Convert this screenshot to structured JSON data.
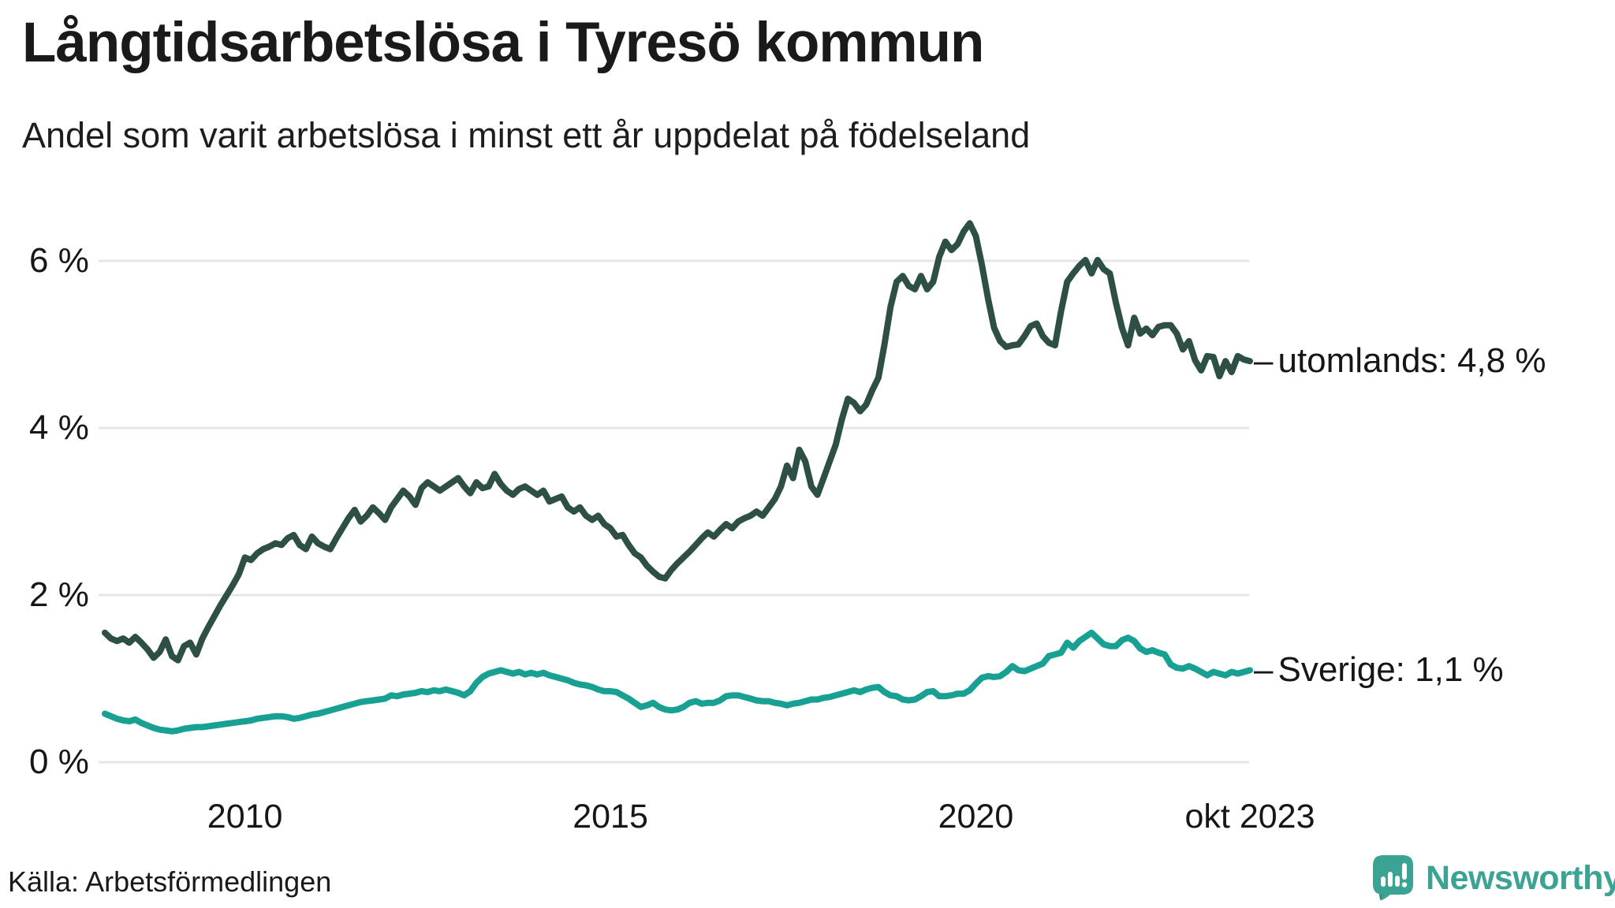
{
  "header": {
    "title": "Långtidsarbetslösa i Tyresö kommun",
    "subtitle": "Andel som varit arbetslösa i minst ett år uppdelat på födelseland"
  },
  "footer": {
    "source": "Källa: Arbetsförmedlingen",
    "logo_text": "Newsworthy"
  },
  "colors": {
    "utomlands_line": "#2d4f45",
    "sverige_line": "#18a192",
    "gridline": "#e6e6e8",
    "text": "#1a1a1a",
    "logo_teal": "#3aa394"
  },
  "chart_data": {
    "type": "line",
    "unit": "%",
    "ylim": [
      0,
      6.6
    ],
    "grid": "horizontal",
    "legend_position": "right-end-labels",
    "label_dash": "–",
    "y_ticks": [
      {
        "label": "6 %",
        "value": 6
      },
      {
        "label": "4 %",
        "value": 4
      },
      {
        "label": "2 %",
        "value": 2
      },
      {
        "label": "0 %",
        "value": 0
      }
    ],
    "x_ticks": [
      {
        "label": "2010",
        "month_index": 23
      },
      {
        "label": "2015",
        "month_index": 83
      },
      {
        "label": "2020",
        "month_index": 143
      },
      {
        "label": "okt 2023",
        "month_index": 188
      }
    ],
    "series": [
      {
        "name": "utomlands",
        "end_label": "utomlands: 4,8 %",
        "end_value": "4,8 %",
        "color": "#2d4f45",
        "values": [
          1.55,
          1.48,
          1.45,
          1.48,
          1.43,
          1.5,
          1.43,
          1.35,
          1.25,
          1.32,
          1.47,
          1.27,
          1.22,
          1.39,
          1.43,
          1.29,
          1.48,
          1.62,
          1.75,
          1.88,
          2.0,
          2.12,
          2.25,
          2.45,
          2.42,
          2.5,
          2.55,
          2.58,
          2.62,
          2.6,
          2.68,
          2.72,
          2.6,
          2.55,
          2.7,
          2.62,
          2.58,
          2.55,
          2.68,
          2.8,
          2.92,
          3.02,
          2.88,
          2.95,
          3.05,
          2.98,
          2.9,
          3.05,
          3.15,
          3.25,
          3.18,
          3.08,
          3.28,
          3.35,
          3.3,
          3.25,
          3.3,
          3.35,
          3.4,
          3.3,
          3.22,
          3.35,
          3.28,
          3.3,
          3.45,
          3.33,
          3.25,
          3.2,
          3.27,
          3.3,
          3.25,
          3.2,
          3.25,
          3.12,
          3.15,
          3.18,
          3.05,
          3.0,
          3.05,
          2.95,
          2.9,
          2.95,
          2.85,
          2.8,
          2.7,
          2.72,
          2.6,
          2.5,
          2.45,
          2.35,
          2.28,
          2.22,
          2.2,
          2.3,
          2.38,
          2.45,
          2.52,
          2.6,
          2.68,
          2.75,
          2.7,
          2.78,
          2.85,
          2.8,
          2.88,
          2.92,
          2.95,
          3.0,
          2.95,
          3.05,
          3.15,
          3.3,
          3.55,
          3.4,
          3.74,
          3.6,
          3.3,
          3.2,
          3.4,
          3.6,
          3.8,
          4.1,
          4.35,
          4.3,
          4.2,
          4.28,
          4.45,
          4.6,
          5.0,
          5.45,
          5.75,
          5.82,
          5.7,
          5.66,
          5.82,
          5.66,
          5.75,
          6.05,
          6.23,
          6.13,
          6.2,
          6.35,
          6.45,
          6.3,
          5.95,
          5.55,
          5.2,
          5.04,
          4.97,
          4.99,
          5.0,
          5.1,
          5.22,
          5.25,
          5.1,
          5.02,
          4.99,
          5.4,
          5.75,
          5.85,
          5.94,
          6.01,
          5.85,
          6.01,
          5.9,
          5.85,
          5.5,
          5.2,
          4.99,
          5.32,
          5.13,
          5.19,
          5.11,
          5.21,
          5.23,
          5.23,
          5.13,
          4.94,
          5.04,
          4.81,
          4.69,
          4.86,
          4.85,
          4.62,
          4.8,
          4.67,
          4.86,
          4.82,
          4.8
        ]
      },
      {
        "name": "Sverige",
        "end_label": "Sverige: 1,1 %",
        "end_value": "1,1 %",
        "color": "#18a192",
        "values": [
          0.58,
          0.55,
          0.52,
          0.5,
          0.49,
          0.51,
          0.47,
          0.44,
          0.41,
          0.39,
          0.38,
          0.37,
          0.38,
          0.4,
          0.41,
          0.42,
          0.42,
          0.43,
          0.44,
          0.45,
          0.46,
          0.47,
          0.48,
          0.49,
          0.5,
          0.52,
          0.53,
          0.54,
          0.55,
          0.55,
          0.54,
          0.52,
          0.53,
          0.55,
          0.57,
          0.58,
          0.6,
          0.62,
          0.64,
          0.66,
          0.68,
          0.7,
          0.72,
          0.73,
          0.74,
          0.75,
          0.76,
          0.8,
          0.79,
          0.81,
          0.82,
          0.83,
          0.85,
          0.84,
          0.86,
          0.85,
          0.87,
          0.85,
          0.83,
          0.8,
          0.85,
          0.95,
          1.02,
          1.06,
          1.08,
          1.1,
          1.08,
          1.06,
          1.08,
          1.05,
          1.07,
          1.05,
          1.07,
          1.04,
          1.02,
          1.0,
          0.98,
          0.95,
          0.93,
          0.92,
          0.9,
          0.87,
          0.85,
          0.85,
          0.84,
          0.8,
          0.76,
          0.71,
          0.66,
          0.68,
          0.71,
          0.66,
          0.63,
          0.62,
          0.63,
          0.66,
          0.71,
          0.73,
          0.7,
          0.71,
          0.71,
          0.74,
          0.79,
          0.8,
          0.8,
          0.78,
          0.76,
          0.74,
          0.73,
          0.73,
          0.71,
          0.7,
          0.68,
          0.7,
          0.71,
          0.73,
          0.75,
          0.75,
          0.77,
          0.78,
          0.8,
          0.82,
          0.84,
          0.86,
          0.84,
          0.87,
          0.89,
          0.9,
          0.84,
          0.8,
          0.79,
          0.75,
          0.74,
          0.75,
          0.79,
          0.84,
          0.85,
          0.79,
          0.79,
          0.8,
          0.82,
          0.82,
          0.86,
          0.94,
          1.01,
          1.03,
          1.02,
          1.03,
          1.08,
          1.15,
          1.1,
          1.09,
          1.12,
          1.15,
          1.18,
          1.27,
          1.29,
          1.31,
          1.43,
          1.37,
          1.45,
          1.5,
          1.55,
          1.48,
          1.41,
          1.39,
          1.39,
          1.46,
          1.49,
          1.45,
          1.36,
          1.32,
          1.34,
          1.31,
          1.29,
          1.17,
          1.13,
          1.12,
          1.15,
          1.12,
          1.08,
          1.04,
          1.08,
          1.06,
          1.04,
          1.08,
          1.06,
          1.08,
          1.1
        ]
      }
    ]
  }
}
